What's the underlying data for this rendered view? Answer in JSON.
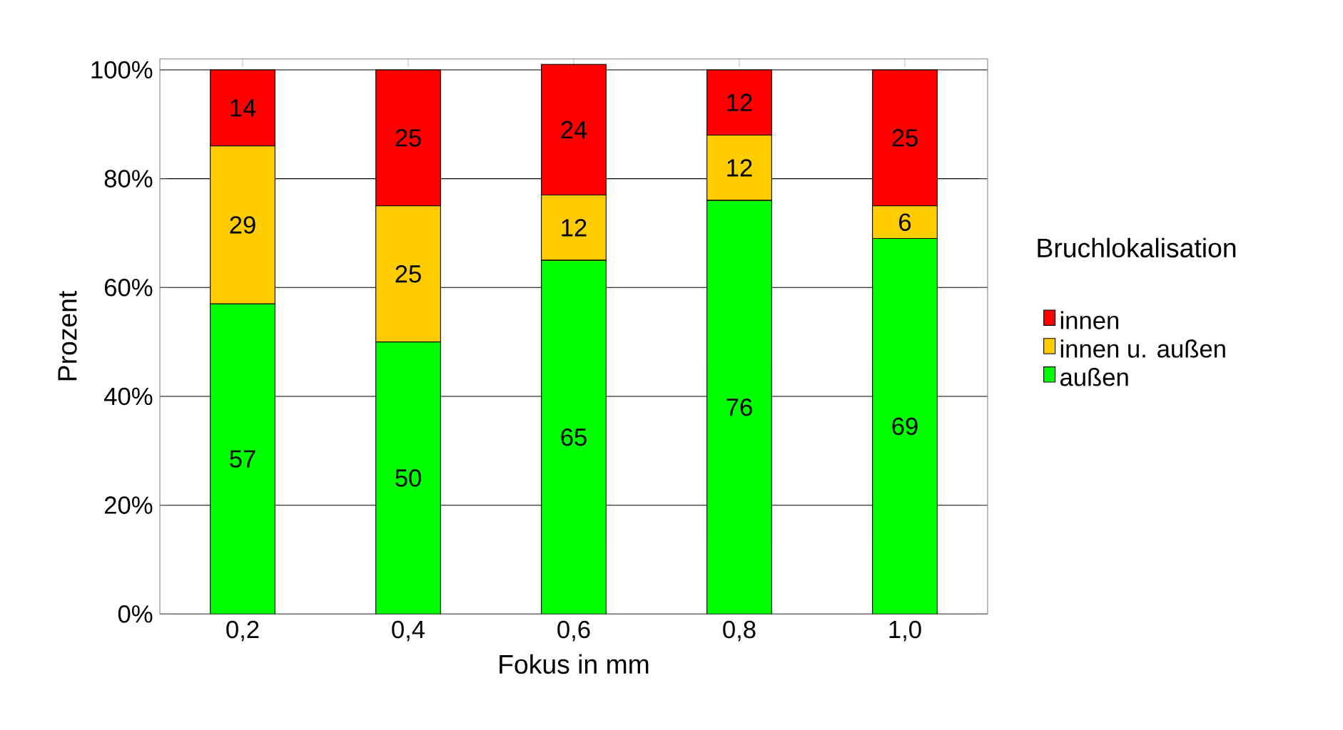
{
  "chart_data": {
    "type": "bar",
    "stacked": true,
    "xlabel": "Fokus in mm",
    "ylabel": "Prozent",
    "legend_title": "Bruchlokalisation",
    "categories": [
      "0,2",
      "0,4",
      "0,6",
      "0,8",
      "1,0"
    ],
    "series": [
      {
        "name": "außen",
        "color": "#00ff00",
        "values": [
          57,
          50,
          65,
          76,
          69
        ]
      },
      {
        "name": "innen u. außen",
        "color": "#ffcc00",
        "values": [
          29,
          25,
          12,
          12,
          6
        ]
      },
      {
        "name": "innen",
        "color": "#ff0000",
        "values": [
          14,
          25,
          24,
          12,
          25
        ]
      }
    ],
    "ylim": [
      0,
      102
    ],
    "yticks": [
      {
        "value": 0,
        "label": "0%"
      },
      {
        "value": 20,
        "label": "20%"
      },
      {
        "value": 40,
        "label": "40%"
      },
      {
        "value": 60,
        "label": "60%"
      },
      {
        "value": 80,
        "label": "80%"
      },
      {
        "value": 100,
        "label": "100%"
      }
    ],
    "grid": "y",
    "legend": "right",
    "data_labels": true
  }
}
